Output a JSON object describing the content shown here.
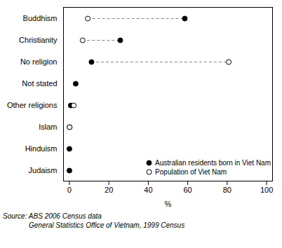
{
  "chart_data": {
    "type": "dot",
    "categories": [
      "Buddhism",
      "Christianity",
      "No religion",
      "Not stated",
      "Other religions",
      "Islam",
      "Hinduism",
      "Judaism"
    ],
    "series": [
      {
        "name": "Australian residents born in Viet Nam",
        "color": "#000000",
        "marker": "filled",
        "values": [
          58.5,
          25.8,
          11.2,
          3.2,
          0.7,
          0.1,
          0.0,
          0.0
        ]
      },
      {
        "name": "Population of Viet Nam",
        "color": "#000000",
        "marker": "open",
        "values": [
          9.3,
          6.7,
          80.8,
          null,
          2.2,
          0.1,
          null,
          null
        ]
      }
    ],
    "x_label": "%",
    "xlim": [
      -3,
      103
    ],
    "xticks": [
      0,
      20,
      40,
      60,
      80,
      100
    ],
    "line_style": "dashed",
    "legend": "bottom-right",
    "caption": [
      "Source: ABS 2006 Census data",
      "General Statistics Office of Vietnam, 1999 Census"
    ]
  }
}
